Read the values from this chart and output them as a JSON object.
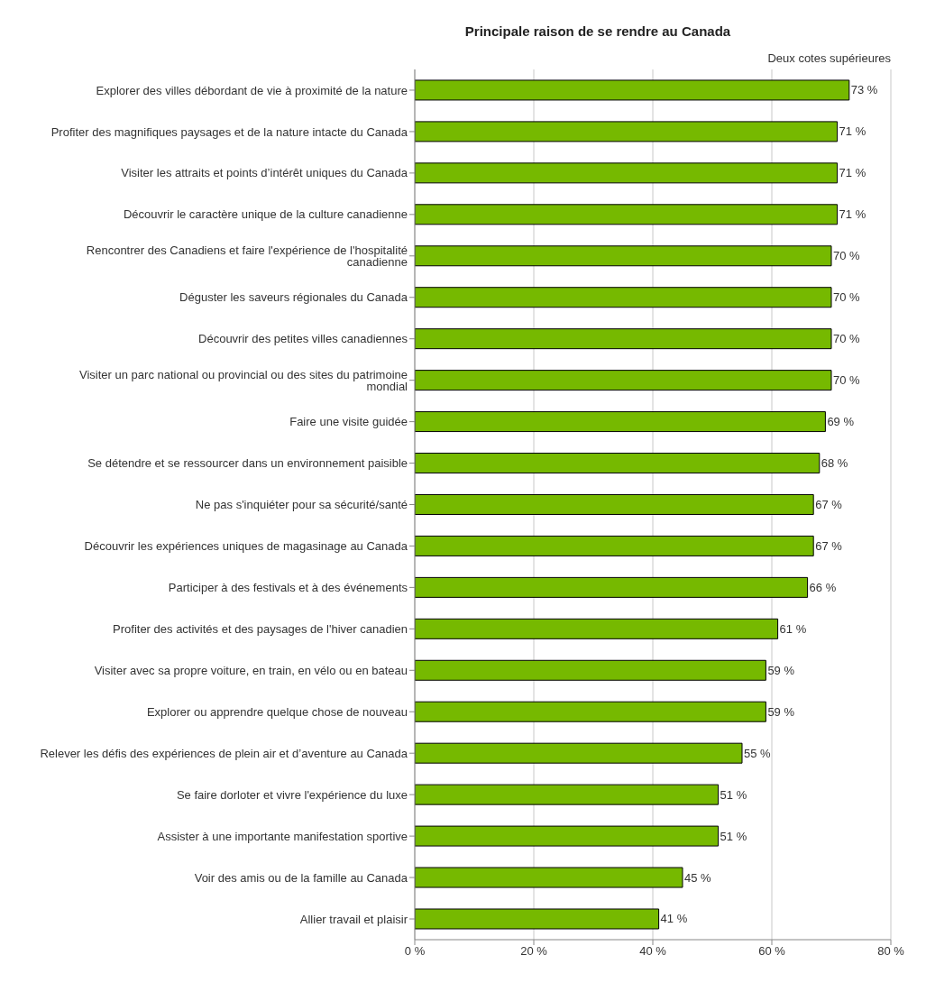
{
  "chart_data": {
    "type": "bar",
    "orientation": "horizontal",
    "title": "Principale raison de se rendre au Canada",
    "annotations": [
      "Deux cotes supérieures"
    ],
    "categories": [
      "Explorer des villes débordant de vie à proximité de la nature",
      "Profiter des magnifiques paysages et de la nature intacte du Canada",
      "Visiter les attraits et points d’intérêt uniques du Canada",
      "Découvrir le caractère unique de la culture canadienne",
      "Rencontrer des Canadiens et faire l'expérience de l'hospitalité canadienne",
      "Déguster les saveurs régionales du Canada ",
      "Découvrir des petites villes canadiennes",
      "Visiter un parc national ou provincial ou des sites du patrimoine mondial",
      "Faire une visite guidée",
      "Se détendre et se ressourcer dans un environnement paisible",
      "Ne pas s'inquiéter pour sa sécurité/santé",
      "Découvrir les expériences uniques de magasinage au Canada",
      "Participer à des festivals et à des événements",
      "Profiter des activités et des paysages de l'hiver canadien",
      "Visiter avec sa propre voiture, en train, en vélo ou en bateau",
      "Explorer ou apprendre quelque chose de nouveau",
      "Relever les défis des expériences de plein air et d’aventure au Canada",
      "Se faire dorloter et vivre l'expérience du luxe",
      "Assister à une importante manifestation sportive",
      "Voir des amis ou de la famille au Canada",
      "Allier travail et plaisir"
    ],
    "values": [
      73,
      71,
      71,
      71,
      70,
      70,
      70,
      70,
      69,
      68,
      67,
      67,
      66,
      61,
      59,
      59,
      55,
      51,
      51,
      45,
      41
    ],
    "value_labels": [
      "73 %",
      "71 %",
      "71 %",
      "71 %",
      "70 %",
      "70 %",
      "70 %",
      "70 %",
      "69 %",
      "68 %",
      "67 %",
      "67 %",
      "66 %",
      "61 %",
      "59 %",
      "59 %",
      "55 %",
      "51 %",
      "51 %",
      "45 %",
      "41 %"
    ],
    "color": "#76b900",
    "xlim": [
      0,
      80
    ],
    "xticks": [
      {
        "value": 0,
        "label": "0 %"
      },
      {
        "value": 20,
        "label": "20 %"
      },
      {
        "value": 40,
        "label": "40 %"
      },
      {
        "value": 60,
        "label": "60 %"
      },
      {
        "value": 80,
        "label": "80 %"
      }
    ],
    "grid": "x",
    "legend": false
  }
}
